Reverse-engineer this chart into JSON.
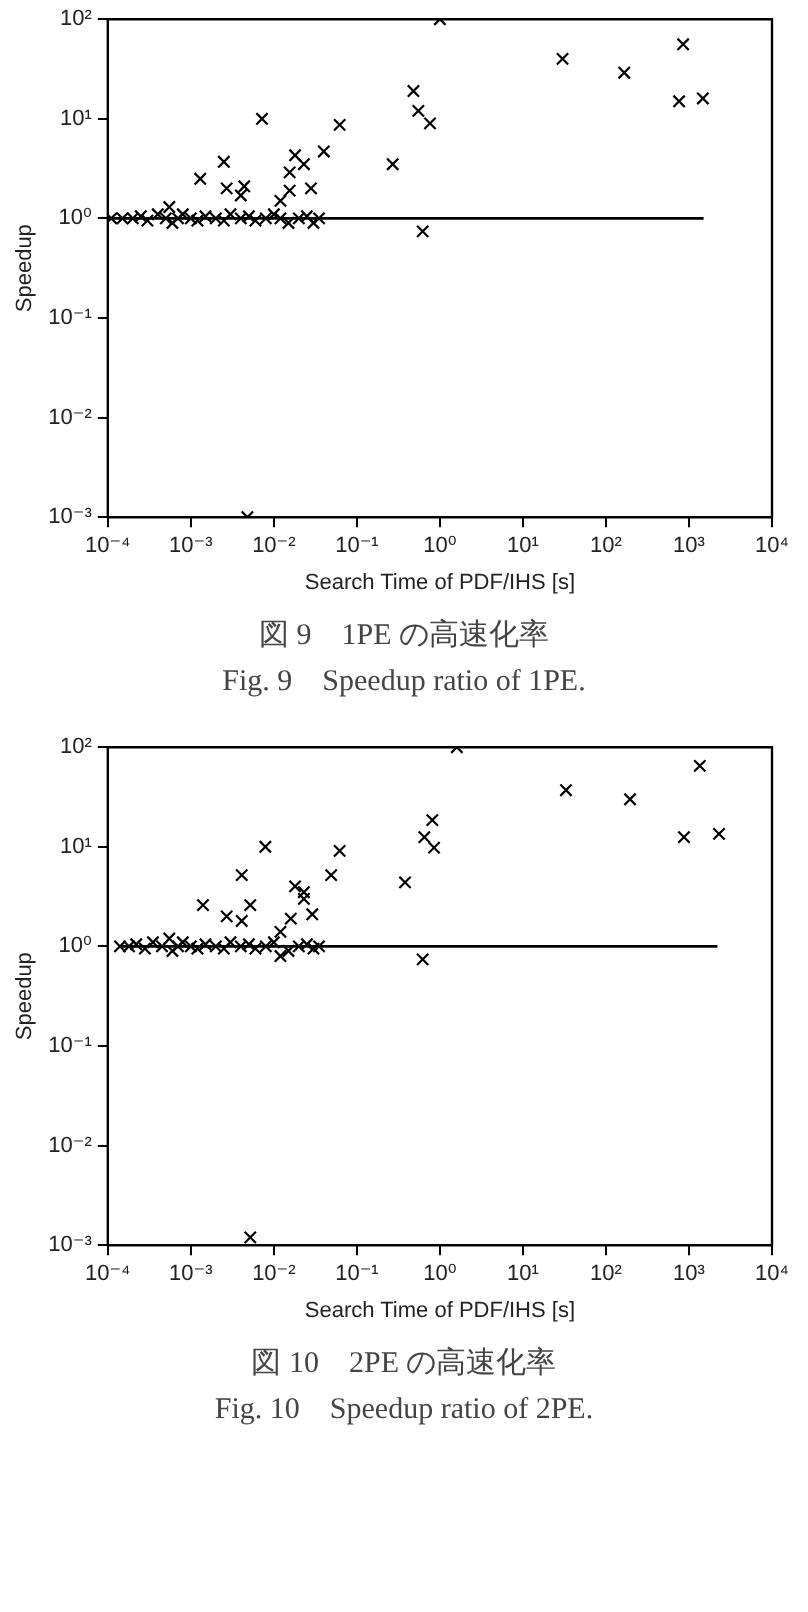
{
  "chart_data": [
    {
      "type": "scatter",
      "title": "図 9　1PE の高速化率",
      "subtitle": "Fig. 9　Speedup ratio of 1PE.",
      "xlabel": "Search Time of PDF/IHS [s]",
      "ylabel": "Speedup",
      "log": "xy",
      "grid": false,
      "legend": false,
      "marker": "cross",
      "xlim": [
        0.0001,
        10000
      ],
      "ylim": [
        0.001,
        100
      ],
      "xticks": [
        {
          "value": 0.0001,
          "label": "10⁻⁴"
        },
        {
          "value": 0.001,
          "label": "10⁻³"
        },
        {
          "value": 0.01,
          "label": "10⁻²"
        },
        {
          "value": 0.1,
          "label": "10⁻¹"
        },
        {
          "value": 1,
          "label": "10⁰"
        },
        {
          "value": 10,
          "label": "10¹"
        },
        {
          "value": 100,
          "label": "10²"
        },
        {
          "value": 1000,
          "label": "10³"
        },
        {
          "value": 10000,
          "label": "10⁴"
        }
      ],
      "yticks": [
        {
          "value": 0.001,
          "label": "10⁻³"
        },
        {
          "value": 0.01,
          "label": "10⁻²"
        },
        {
          "value": 0.1,
          "label": "10⁻¹"
        },
        {
          "value": 1,
          "label": "10⁰"
        },
        {
          "value": 10,
          "label": "10¹"
        },
        {
          "value": 100,
          "label": "10²"
        }
      ],
      "series": [
        {
          "color": "#000000",
          "x": [
            1,
            30,
            166,
            850,
            760,
            1470,
            0.48,
            0.55,
            0.76,
            0.27,
            0.62,
            0.062,
            0.04,
            0.0072,
            0.018,
            0.023,
            0.0155,
            0.028,
            0.0155,
            0.0013,
            0.0025,
            0.0027,
            0.0044,
            0.004,
            0.0048,
            0.012,
            0.00011,
            0.00015,
            0.0002,
            0.00025,
            0.0003,
            0.0004,
            0.0005,
            0.00055,
            0.0006,
            0.0007,
            0.0008,
            0.001,
            0.0012,
            0.0015,
            0.002,
            0.0025,
            0.003,
            0.004,
            0.005,
            0.006,
            0.008,
            0.01,
            0.012,
            0.015,
            0.02,
            0.025,
            0.03,
            0.035
          ],
          "values": [
            100,
            40,
            29,
            56,
            15,
            16,
            19,
            12,
            9,
            3.5,
            0.74,
            8.7,
            4.7,
            10,
            4.3,
            3.5,
            2.9,
            2,
            1.9,
            2.5,
            3.7,
            2,
            2.1,
            1.7,
            0.001,
            1.5,
            1,
            1,
            1,
            1.05,
            0.95,
            1.1,
            1,
            1.3,
            0.9,
            1,
            1.1,
            1,
            0.95,
            1.05,
            1,
            0.95,
            1.1,
            1,
            1.05,
            0.95,
            1,
            1.1,
            1,
            0.9,
            1,
            1.05,
            0.9,
            1
          ]
        },
        {
          "type": "line",
          "color": "#000000",
          "marker": "none",
          "x": [
            0.0001,
            1500
          ],
          "values": [
            1,
            1
          ]
        }
      ]
    },
    {
      "type": "scatter",
      "title": "図 10　2PE の高速化率",
      "subtitle": "Fig. 10　Speedup ratio of 2PE.",
      "xlabel": "Search Time of PDF/IHS [s]",
      "ylabel": "Speedup",
      "log": "xy",
      "grid": false,
      "legend": false,
      "marker": "cross",
      "xlim": [
        0.0001,
        10000
      ],
      "ylim": [
        0.001,
        100
      ],
      "xticks": [
        {
          "value": 0.0001,
          "label": "10⁻⁴"
        },
        {
          "value": 0.001,
          "label": "10⁻³"
        },
        {
          "value": 0.01,
          "label": "10⁻²"
        },
        {
          "value": 0.1,
          "label": "10⁻¹"
        },
        {
          "value": 1,
          "label": "10⁰"
        },
        {
          "value": 10,
          "label": "10¹"
        },
        {
          "value": 100,
          "label": "10²"
        },
        {
          "value": 1000,
          "label": "10³"
        },
        {
          "value": 10000,
          "label": "10⁴"
        }
      ],
      "yticks": [
        {
          "value": 0.001,
          "label": "10⁻³"
        },
        {
          "value": 0.01,
          "label": "10⁻²"
        },
        {
          "value": 0.1,
          "label": "10⁻¹"
        },
        {
          "value": 1,
          "label": "10⁰"
        },
        {
          "value": 10,
          "label": "10¹"
        },
        {
          "value": 100,
          "label": "10²"
        }
      ],
      "series": [
        {
          "color": "#000000",
          "x": [
            1.6,
            33,
            195,
            1350,
            870,
            2300,
            0.65,
            0.81,
            0.85,
            0.38,
            0.62,
            0.062,
            0.049,
            0.0079,
            0.0041,
            0.018,
            0.023,
            0.023,
            0.029,
            0.016,
            0.0014,
            0.0027,
            0.0052,
            0.0041,
            0.012,
            0.0052,
            0.012,
            0.035,
            0.00014,
            0.00018,
            0.00022,
            0.00028,
            0.00035,
            0.00045,
            0.00055,
            0.0006,
            0.0007,
            0.0008,
            0.001,
            0.0012,
            0.0015,
            0.002,
            0.0025,
            0.003,
            0.004,
            0.005,
            0.006,
            0.008,
            0.01,
            0.015,
            0.02,
            0.025,
            0.03
          ],
          "values": [
            100,
            37,
            30,
            65,
            12.5,
            13.5,
            12.5,
            18.5,
            9.8,
            4.4,
            0.74,
            9.1,
            5.2,
            10,
            5.2,
            4,
            3.5,
            3,
            2.1,
            1.9,
            2.6,
            2,
            2.6,
            1.8,
            1.4,
            0.0012,
            0.8,
            1,
            1,
            1,
            1.05,
            0.95,
            1.1,
            1,
            1.2,
            0.9,
            1,
            1.1,
            1,
            0.95,
            1.05,
            1,
            0.95,
            1.1,
            1,
            1.05,
            0.95,
            1,
            1.1,
            0.9,
            1,
            1.05,
            0.95
          ]
        },
        {
          "type": "line",
          "color": "#000000",
          "marker": "none",
          "x": [
            0.00014,
            2200
          ],
          "values": [
            1,
            1
          ]
        }
      ]
    }
  ]
}
